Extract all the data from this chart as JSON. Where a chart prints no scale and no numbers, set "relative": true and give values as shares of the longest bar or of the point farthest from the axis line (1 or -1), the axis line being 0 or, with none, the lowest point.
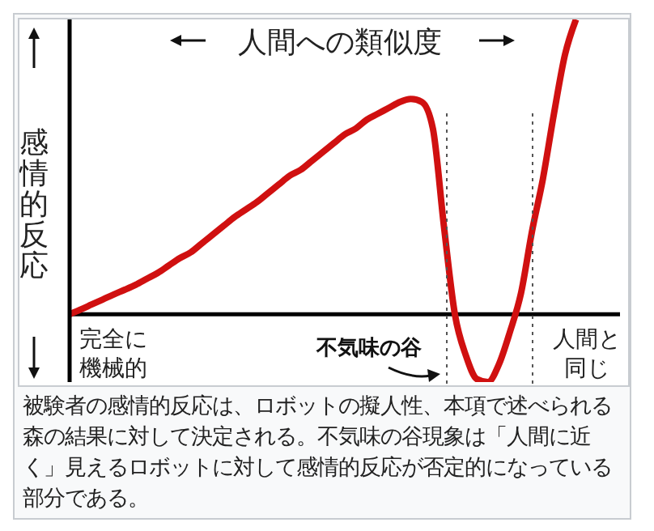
{
  "chart_data": {
    "type": "line",
    "relative": true,
    "xlabel": "人間への類似度",
    "ylabel": "感情的反応",
    "categories": [
      null,
      null,
      null,
      null,
      "完全に機械的",
      null,
      null,
      null,
      null,
      null,
      null,
      null,
      null,
      null,
      null,
      null,
      null,
      null,
      null,
      null,
      null,
      null,
      null,
      null,
      null,
      null,
      null,
      null,
      null,
      null,
      null,
      null,
      null,
      null,
      null,
      null,
      null,
      null,
      null,
      null,
      null,
      null,
      null,
      null,
      null,
      null,
      null,
      "人間と同じ",
      null,
      null,
      null
    ],
    "series": [
      {
        "color": "#d01010",
        "values": [
          0,
          0.016,
          0.033,
          0.05,
          0.067,
          0.083,
          0.1,
          0.12,
          0.14,
          0.165,
          0.19,
          0.21,
          0.24,
          0.27,
          0.3,
          0.33,
          0.355,
          0.38,
          0.41,
          0.44,
          0.47,
          0.49,
          0.52,
          0.55,
          0.58,
          0.61,
          0.63,
          0.66,
          0.68,
          0.7,
          0.72,
          0.73,
          0.72,
          0.63,
          0.3,
          0,
          -0.14,
          -0.22,
          -0.23,
          -0.17,
          -0.06,
          0.07,
          0.28,
          0.46,
          0.68,
          0.88,
          1.0,
          null,
          null,
          null,
          null
        ]
      }
    ],
    "line_style": "solid",
    "annotations": [
      "不気味の谷",
      "被験者の感情的反応は、ロボットの擬人性、本項で述べられる森の結果に対して決定される。不気味の谷現象は「人間に近く」見えるロボットに対して感情的反応が否定的になっている部分である。"
    ]
  }
}
